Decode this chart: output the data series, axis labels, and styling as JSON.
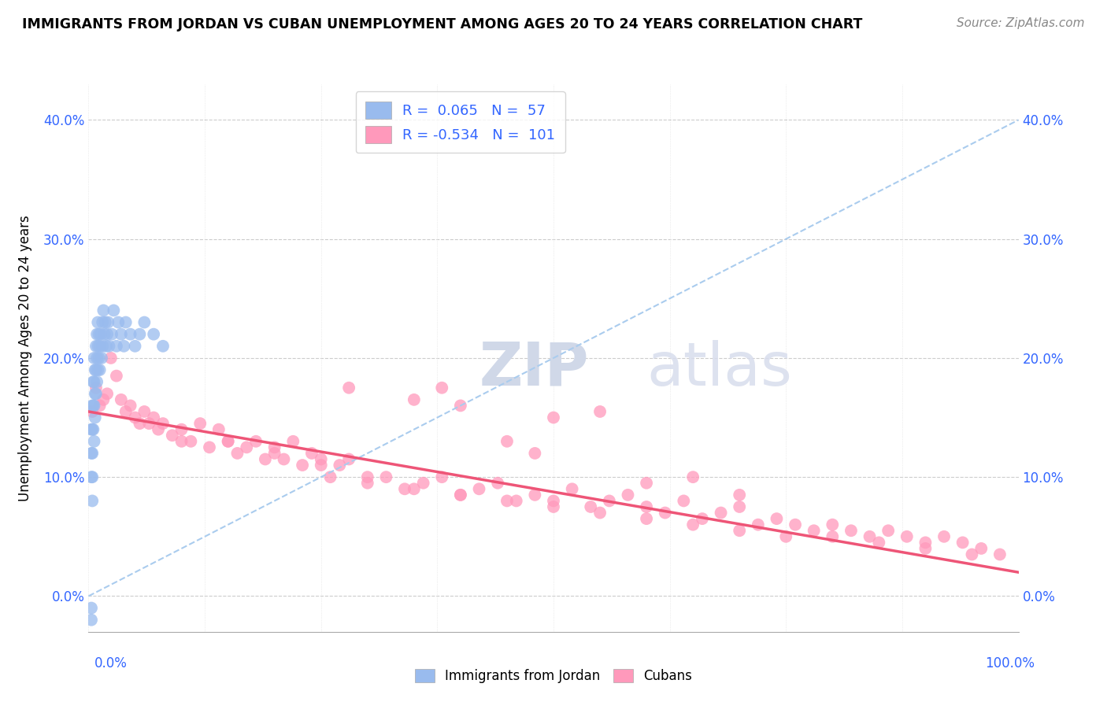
{
  "title": "IMMIGRANTS FROM JORDAN VS CUBAN UNEMPLOYMENT AMONG AGES 20 TO 24 YEARS CORRELATION CHART",
  "source": "Source: ZipAtlas.com",
  "ylabel": "Unemployment Among Ages 20 to 24 years",
  "yticks": [
    "0.0%",
    "10.0%",
    "20.0%",
    "30.0%",
    "40.0%"
  ],
  "ytick_vals": [
    0.0,
    0.1,
    0.2,
    0.3,
    0.4
  ],
  "xlim": [
    0.0,
    1.0
  ],
  "ylim": [
    -0.03,
    0.43
  ],
  "legend_label1": "Immigrants from Jordan",
  "legend_label2": "Cubans",
  "r1": 0.065,
  "n1": 57,
  "r2": -0.534,
  "n2": 101,
  "blue_color": "#99BBEE",
  "pink_color": "#FF99BB",
  "trendline1_color": "#AACCEE",
  "trendline2_color": "#EE5577",
  "legend_text_color": "#3366FF",
  "jordan_x": [
    0.003,
    0.003,
    0.003,
    0.004,
    0.004,
    0.004,
    0.004,
    0.004,
    0.005,
    0.005,
    0.005,
    0.006,
    0.006,
    0.006,
    0.006,
    0.007,
    0.007,
    0.007,
    0.008,
    0.008,
    0.008,
    0.009,
    0.009,
    0.009,
    0.01,
    0.01,
    0.01,
    0.011,
    0.011,
    0.012,
    0.012,
    0.013,
    0.014,
    0.015,
    0.015,
    0.016,
    0.017,
    0.018,
    0.019,
    0.02,
    0.021,
    0.022,
    0.025,
    0.027,
    0.03,
    0.032,
    0.035,
    0.038,
    0.04,
    0.045,
    0.05,
    0.055,
    0.06,
    0.07,
    0.08,
    0.003,
    0.003
  ],
  "jordan_y": [
    0.14,
    0.12,
    0.1,
    0.16,
    0.14,
    0.12,
    0.1,
    0.08,
    0.18,
    0.16,
    0.14,
    0.2,
    0.18,
    0.16,
    0.13,
    0.19,
    0.17,
    0.15,
    0.21,
    0.19,
    0.17,
    0.22,
    0.2,
    0.18,
    0.23,
    0.21,
    0.19,
    0.22,
    0.2,
    0.21,
    0.19,
    0.22,
    0.2,
    0.23,
    0.21,
    0.24,
    0.22,
    0.23,
    0.21,
    0.22,
    0.23,
    0.21,
    0.22,
    0.24,
    0.21,
    0.23,
    0.22,
    0.21,
    0.23,
    0.22,
    0.21,
    0.22,
    0.23,
    0.22,
    0.21,
    -0.01,
    -0.02
  ],
  "cuban_x": [
    0.004,
    0.008,
    0.012,
    0.016,
    0.02,
    0.024,
    0.03,
    0.035,
    0.04,
    0.045,
    0.05,
    0.055,
    0.06,
    0.065,
    0.07,
    0.075,
    0.08,
    0.09,
    0.1,
    0.11,
    0.12,
    0.13,
    0.14,
    0.15,
    0.16,
    0.17,
    0.18,
    0.19,
    0.2,
    0.21,
    0.22,
    0.23,
    0.24,
    0.25,
    0.26,
    0.27,
    0.28,
    0.3,
    0.32,
    0.34,
    0.36,
    0.38,
    0.4,
    0.42,
    0.44,
    0.46,
    0.48,
    0.5,
    0.52,
    0.54,
    0.56,
    0.58,
    0.6,
    0.62,
    0.64,
    0.66,
    0.68,
    0.7,
    0.72,
    0.74,
    0.76,
    0.78,
    0.8,
    0.82,
    0.84,
    0.86,
    0.88,
    0.9,
    0.92,
    0.94,
    0.96,
    0.98,
    0.1,
    0.15,
    0.2,
    0.25,
    0.3,
    0.35,
    0.4,
    0.45,
    0.5,
    0.55,
    0.6,
    0.65,
    0.7,
    0.75,
    0.8,
    0.85,
    0.9,
    0.95,
    0.5,
    0.35,
    0.45,
    0.4,
    0.55,
    0.6,
    0.65,
    0.7,
    0.38,
    0.28,
    0.48
  ],
  "cuban_y": [
    0.155,
    0.175,
    0.16,
    0.165,
    0.17,
    0.2,
    0.185,
    0.165,
    0.155,
    0.16,
    0.15,
    0.145,
    0.155,
    0.145,
    0.15,
    0.14,
    0.145,
    0.135,
    0.13,
    0.13,
    0.145,
    0.125,
    0.14,
    0.13,
    0.12,
    0.125,
    0.13,
    0.115,
    0.12,
    0.115,
    0.13,
    0.11,
    0.12,
    0.115,
    0.1,
    0.11,
    0.115,
    0.095,
    0.1,
    0.09,
    0.095,
    0.1,
    0.085,
    0.09,
    0.095,
    0.08,
    0.085,
    0.08,
    0.09,
    0.075,
    0.08,
    0.085,
    0.075,
    0.07,
    0.08,
    0.065,
    0.07,
    0.075,
    0.06,
    0.065,
    0.06,
    0.055,
    0.06,
    0.055,
    0.05,
    0.055,
    0.05,
    0.045,
    0.05,
    0.045,
    0.04,
    0.035,
    0.14,
    0.13,
    0.125,
    0.11,
    0.1,
    0.09,
    0.085,
    0.08,
    0.075,
    0.07,
    0.065,
    0.06,
    0.055,
    0.05,
    0.05,
    0.045,
    0.04,
    0.035,
    0.15,
    0.165,
    0.13,
    0.16,
    0.155,
    0.095,
    0.1,
    0.085,
    0.175,
    0.175,
    0.12
  ],
  "jordan_trend": [
    0.0,
    0.0,
    1.0,
    0.4
  ],
  "cuban_trend": [
    0.0,
    0.155,
    1.0,
    0.02
  ]
}
